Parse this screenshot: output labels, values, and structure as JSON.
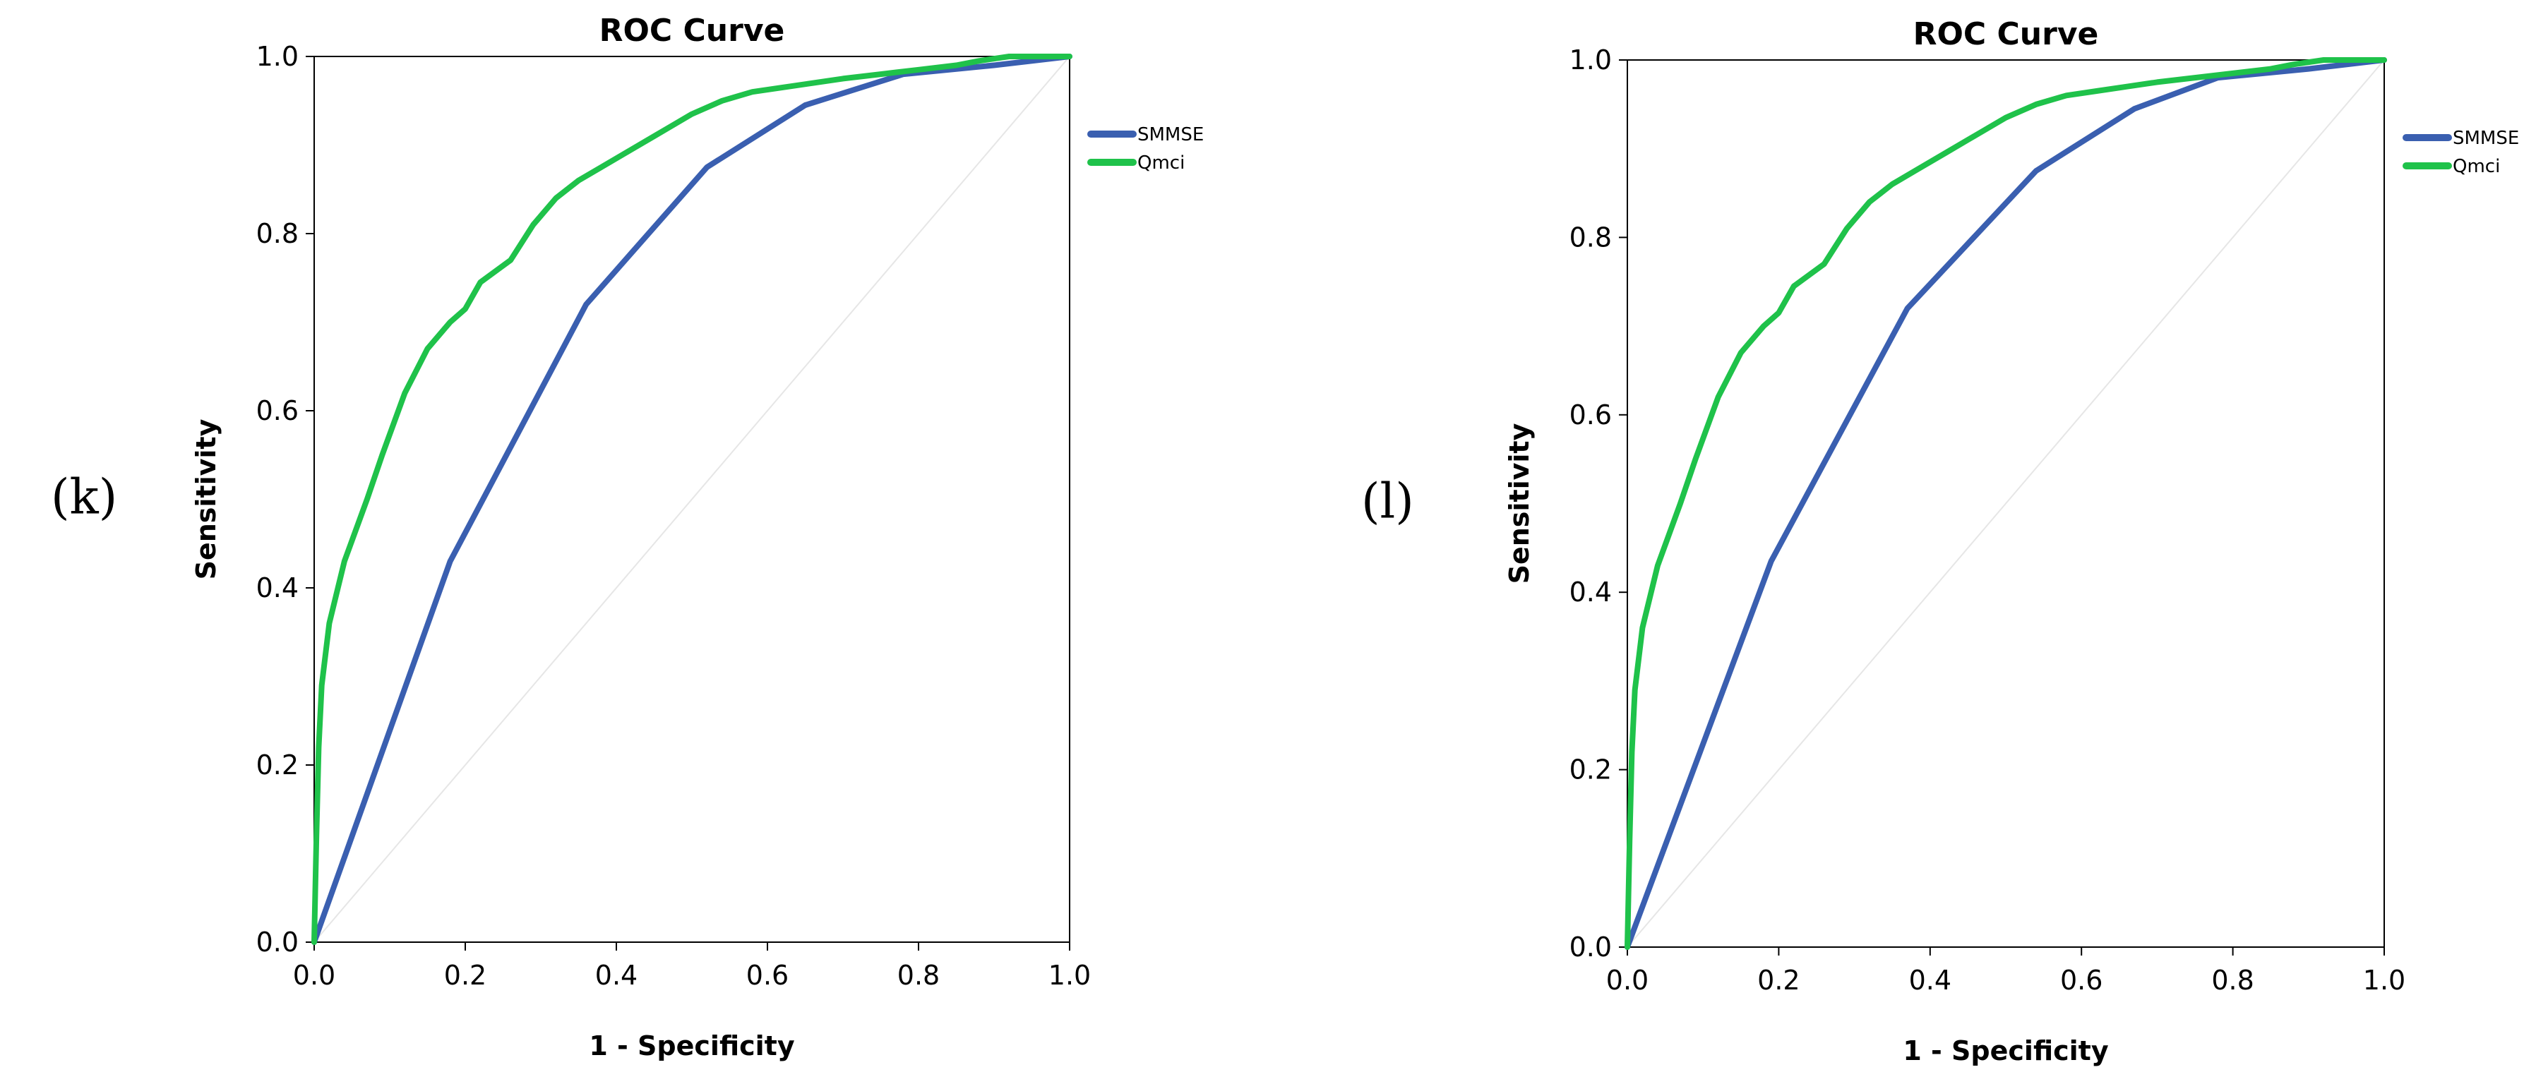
{
  "chart_data": [
    {
      "panel_label": "(k)",
      "type": "line",
      "title": "ROC Curve",
      "xlabel": "1 - Specificity",
      "ylabel": "Sensitivity",
      "xlim": [
        0,
        1
      ],
      "ylim": [
        0,
        1
      ],
      "xticks": [
        "0.0",
        "0.2",
        "0.4",
        "0.6",
        "0.8",
        "1.0"
      ],
      "yticks": [
        "0.0",
        "0.2",
        "0.4",
        "0.6",
        "0.8",
        "1.0"
      ],
      "legend_position": "right",
      "series": [
        {
          "name": "SMMSE",
          "color": "#3a5fb0",
          "x": [
            0,
            0.18,
            0.36,
            0.52,
            0.65,
            0.78,
            0.9,
            1.0
          ],
          "y": [
            0,
            0.43,
            0.72,
            0.875,
            0.945,
            0.98,
            0.99,
            1.0
          ]
        },
        {
          "name": "Qmci",
          "color": "#1fc24a",
          "x": [
            0,
            0.003,
            0.006,
            0.01,
            0.02,
            0.04,
            0.07,
            0.09,
            0.12,
            0.15,
            0.18,
            0.2,
            0.22,
            0.26,
            0.29,
            0.32,
            0.35,
            0.38,
            0.42,
            0.45,
            0.47,
            0.5,
            0.54,
            0.58,
            0.62,
            0.66,
            0.7,
            0.75,
            0.8,
            0.85,
            0.88,
            0.92,
            1.0
          ],
          "y": [
            0,
            0.12,
            0.22,
            0.29,
            0.36,
            0.43,
            0.5,
            0.55,
            0.62,
            0.67,
            0.7,
            0.715,
            0.745,
            0.77,
            0.81,
            0.84,
            0.86,
            0.875,
            0.895,
            0.91,
            0.92,
            0.935,
            0.95,
            0.96,
            0.965,
            0.97,
            0.975,
            0.98,
            0.985,
            0.99,
            0.995,
            1.0,
            1.0
          ]
        }
      ]
    },
    {
      "panel_label": "(l)",
      "type": "line",
      "title": "ROC Curve",
      "xlabel": "1 - Specificity",
      "ylabel": "Sensitivity",
      "xlim": [
        0,
        1
      ],
      "ylim": [
        0,
        1
      ],
      "xticks": [
        "0.0",
        "0.2",
        "0.4",
        "0.6",
        "0.8",
        "1.0"
      ],
      "yticks": [
        "0.0",
        "0.2",
        "0.4",
        "0.6",
        "0.8",
        "1.0"
      ],
      "legend_position": "right",
      "series": [
        {
          "name": "SMMSE",
          "color": "#3a5fb0",
          "x": [
            0,
            0.19,
            0.37,
            0.54,
            0.67,
            0.78,
            0.9,
            1.0
          ],
          "y": [
            0,
            0.435,
            0.72,
            0.875,
            0.945,
            0.98,
            0.99,
            1.0
          ]
        },
        {
          "name": "Qmci",
          "color": "#1fc24a",
          "x": [
            0,
            0.003,
            0.006,
            0.01,
            0.02,
            0.04,
            0.07,
            0.09,
            0.12,
            0.15,
            0.18,
            0.2,
            0.22,
            0.26,
            0.29,
            0.32,
            0.35,
            0.38,
            0.42,
            0.45,
            0.47,
            0.5,
            0.54,
            0.58,
            0.62,
            0.66,
            0.7,
            0.75,
            0.8,
            0.85,
            0.88,
            0.92,
            1.0
          ],
          "y": [
            0,
            0.12,
            0.22,
            0.29,
            0.36,
            0.43,
            0.5,
            0.55,
            0.62,
            0.67,
            0.7,
            0.715,
            0.745,
            0.77,
            0.81,
            0.84,
            0.86,
            0.875,
            0.895,
            0.91,
            0.92,
            0.935,
            0.95,
            0.96,
            0.965,
            0.97,
            0.975,
            0.98,
            0.985,
            0.99,
            0.995,
            1.0,
            1.0
          ]
        }
      ]
    }
  ]
}
